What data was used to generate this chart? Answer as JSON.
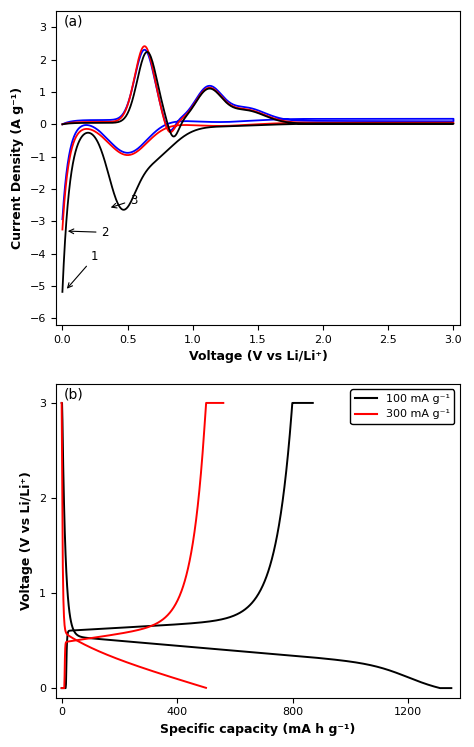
{
  "panel_a": {
    "title": "(a)",
    "xlabel": "Voltage (V vs Li/Li⁺)",
    "ylabel": "Current Density (A g⁻¹)",
    "xlim": [
      -0.05,
      3.05
    ],
    "ylim": [
      -6.2,
      3.5
    ],
    "xticks": [
      0.0,
      0.5,
      1.0,
      1.5,
      2.0,
      2.5,
      3.0
    ],
    "yticks": [
      -6,
      -5,
      -4,
      -3,
      -2,
      -1,
      0,
      1,
      2,
      3
    ],
    "colors": {
      "cycle1": "#000000",
      "cycle2": "#ff0000",
      "cycle3": "#0000ff"
    }
  },
  "panel_b": {
    "title": "(b)",
    "xlabel": "Specific capacity (mA h g⁻¹)",
    "ylabel": "Voltage (V vs Li/Li⁺)",
    "xlim": [
      -20,
      1380
    ],
    "ylim": [
      -0.1,
      3.2
    ],
    "xticks": [
      0,
      400,
      800,
      1200
    ],
    "yticks": [
      0,
      1,
      2,
      3
    ],
    "legend": [
      {
        "label": "100 mA g⁻¹",
        "color": "#000000"
      },
      {
        "label": "300 mA g⁻¹",
        "color": "#ff0000"
      }
    ]
  }
}
